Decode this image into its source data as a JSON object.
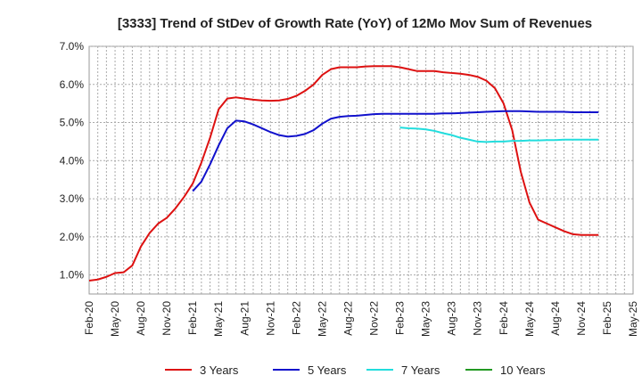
{
  "chart_data": {
    "type": "line",
    "title": "[3333]  Trend of StDev of Growth Rate (YoY) of 12Mo Mov Sum of Revenues",
    "xlabel": "",
    "ylabel": "",
    "ylim": [
      0.5,
      7.0
    ],
    "y_ticks": [
      1.0,
      2.0,
      3.0,
      4.0,
      5.0,
      6.0,
      7.0
    ],
    "y_tick_labels": [
      "1.0%",
      "2.0%",
      "3.0%",
      "4.0%",
      "5.0%",
      "6.0%",
      "7.0%"
    ],
    "x_tick_labels": [
      "Feb-20",
      "May-20",
      "Aug-20",
      "Nov-20",
      "Feb-21",
      "May-21",
      "Aug-21",
      "Nov-21",
      "Feb-22",
      "May-22",
      "Aug-22",
      "Nov-22",
      "Feb-23",
      "May-23",
      "Aug-23",
      "Nov-23",
      "Feb-24",
      "May-24",
      "Aug-24",
      "Nov-24",
      "Feb-25",
      "May-25"
    ],
    "grid": true,
    "legend_position": "bottom",
    "series": [
      {
        "name": "3 Years",
        "color": "#dd1111",
        "start_index": 0,
        "values": [
          0.85,
          0.88,
          0.95,
          1.05,
          1.07,
          1.25,
          1.75,
          2.1,
          2.35,
          2.5,
          2.75,
          3.05,
          3.4,
          3.95,
          4.6,
          5.35,
          5.63,
          5.66,
          5.63,
          5.6,
          5.58,
          5.57,
          5.58,
          5.62,
          5.7,
          5.83,
          6.0,
          6.25,
          6.4,
          6.45,
          6.45,
          6.45,
          6.47,
          6.48,
          6.48,
          6.48,
          6.45,
          6.4,
          6.35,
          6.35,
          6.35,
          6.32,
          6.3,
          6.28,
          6.25,
          6.2,
          6.1,
          5.9,
          5.5,
          4.8,
          3.7,
          2.9,
          2.45,
          2.35,
          2.25,
          2.15,
          2.07,
          2.05,
          2.05,
          2.05
        ]
      },
      {
        "name": "5 Years",
        "color": "#1111cc",
        "start_index": 12,
        "values": [
          3.2,
          3.45,
          3.9,
          4.4,
          4.85,
          5.05,
          5.03,
          4.95,
          4.85,
          4.75,
          4.67,
          4.63,
          4.65,
          4.7,
          4.8,
          4.97,
          5.1,
          5.15,
          5.17,
          5.18,
          5.2,
          5.22,
          5.23,
          5.23,
          5.23,
          5.23,
          5.23,
          5.23,
          5.23,
          5.24,
          5.24,
          5.25,
          5.26,
          5.27,
          5.28,
          5.29,
          5.3,
          5.3,
          5.3,
          5.29,
          5.28,
          5.28,
          5.28,
          5.28,
          5.27,
          5.27,
          5.27,
          5.27
        ]
      },
      {
        "name": "7 Years",
        "color": "#22dddd",
        "start_index": 36,
        "values": [
          4.87,
          4.85,
          4.84,
          4.82,
          4.78,
          4.72,
          4.67,
          4.6,
          4.55,
          4.5,
          4.49,
          4.5,
          4.5,
          4.52,
          4.52,
          4.53,
          4.53,
          4.54,
          4.54,
          4.55,
          4.55,
          4.55,
          4.55,
          4.55
        ]
      },
      {
        "name": "10 Years",
        "color": "#229922",
        "start_index": 0,
        "values": []
      }
    ]
  }
}
